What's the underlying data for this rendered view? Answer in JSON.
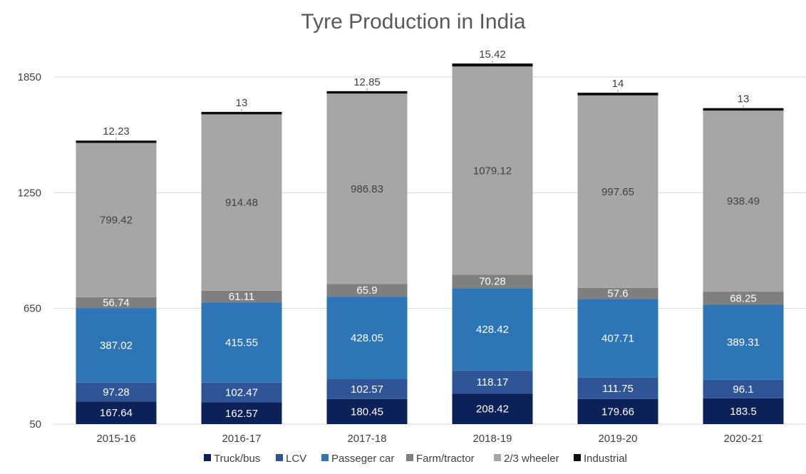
{
  "chart_data": {
    "type": "bar",
    "stacked": true,
    "title": "Tyre Production in India",
    "xlabel": "",
    "ylabel": "",
    "categories": [
      "2015-16",
      "2016-17",
      "2017-18",
      "2018-19",
      "2019-20",
      "2020-21"
    ],
    "y_ticks": [
      "50",
      "650",
      "1250",
      "1850"
    ],
    "ylim": [
      50,
      2050
    ],
    "grid": true,
    "legend_position": "bottom",
    "series": [
      {
        "name": "Truck/bus",
        "color": "#0b2157",
        "label_color": "#ffffff",
        "values": [
          167.64,
          162.57,
          180.45,
          208.42,
          179.66,
          183.5
        ]
      },
      {
        "name": "LCV",
        "color": "#2f5597",
        "label_color": "#ffffff",
        "values": [
          97.28,
          102.47,
          102.57,
          118.17,
          111.75,
          96.1
        ]
      },
      {
        "name": "Passeger car",
        "color": "#2e75b6",
        "label_color": "#ffffff",
        "values": [
          387.02,
          415.55,
          428.05,
          428.42,
          407.71,
          389.31
        ]
      },
      {
        "name": "Farm/tractor",
        "color": "#7f7f7f",
        "label_color": "#ffffff",
        "values": [
          56.74,
          61.11,
          65.9,
          70.28,
          57.6,
          68.25
        ]
      },
      {
        "name": "2/3 wheeler",
        "color": "#a6a6a6",
        "label_color": "#262626",
        "values": [
          799.42,
          914.48,
          986.83,
          1079.12,
          997.65,
          938.49
        ]
      },
      {
        "name": "Industrial",
        "color": "#0d0d0d",
        "label_color": "#262626",
        "values": [
          12.23,
          13,
          12.85,
          15.42,
          14,
          13
        ]
      }
    ]
  }
}
